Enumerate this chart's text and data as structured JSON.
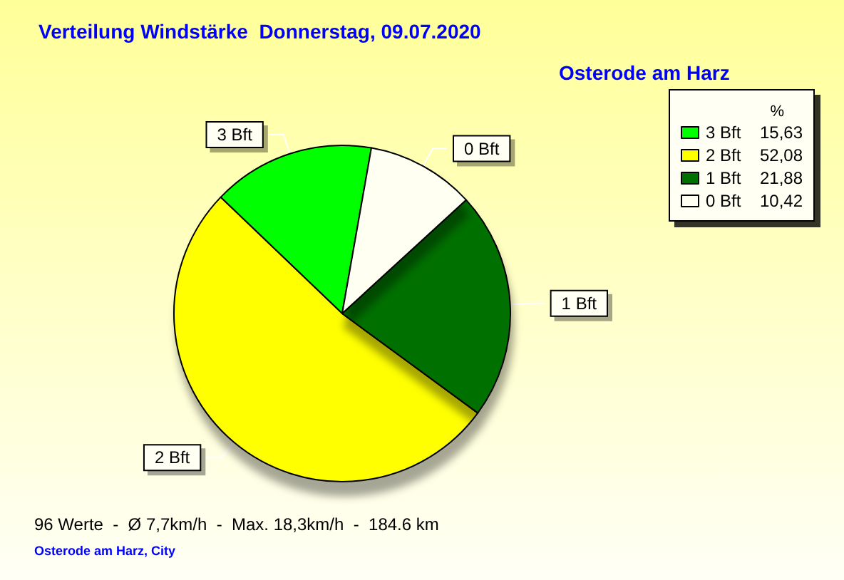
{
  "chart_data": {
    "type": "pie",
    "title": "Verteilung Windstärke  Donnerstag, 09.07.2020",
    "subtitle": "Osterode am Harz",
    "categories": [
      "3 Bft",
      "2 Bft",
      "1 Bft",
      "0 Bft"
    ],
    "values": [
      15.63,
      52.08,
      21.88,
      10.42
    ],
    "value_labels": [
      "15,63",
      "52,08",
      "21,88",
      "10,42"
    ],
    "colors": [
      "#00ff00",
      "#ffff00",
      "#007000",
      "#fffff2"
    ],
    "legend": "top right",
    "legend_title": "%",
    "annotations": [
      "96 Werte  -  Ø 7,7km/h  -  Max. 18,3km/h  -  184.6 km",
      "Osterode am Harz, City"
    ]
  }
}
